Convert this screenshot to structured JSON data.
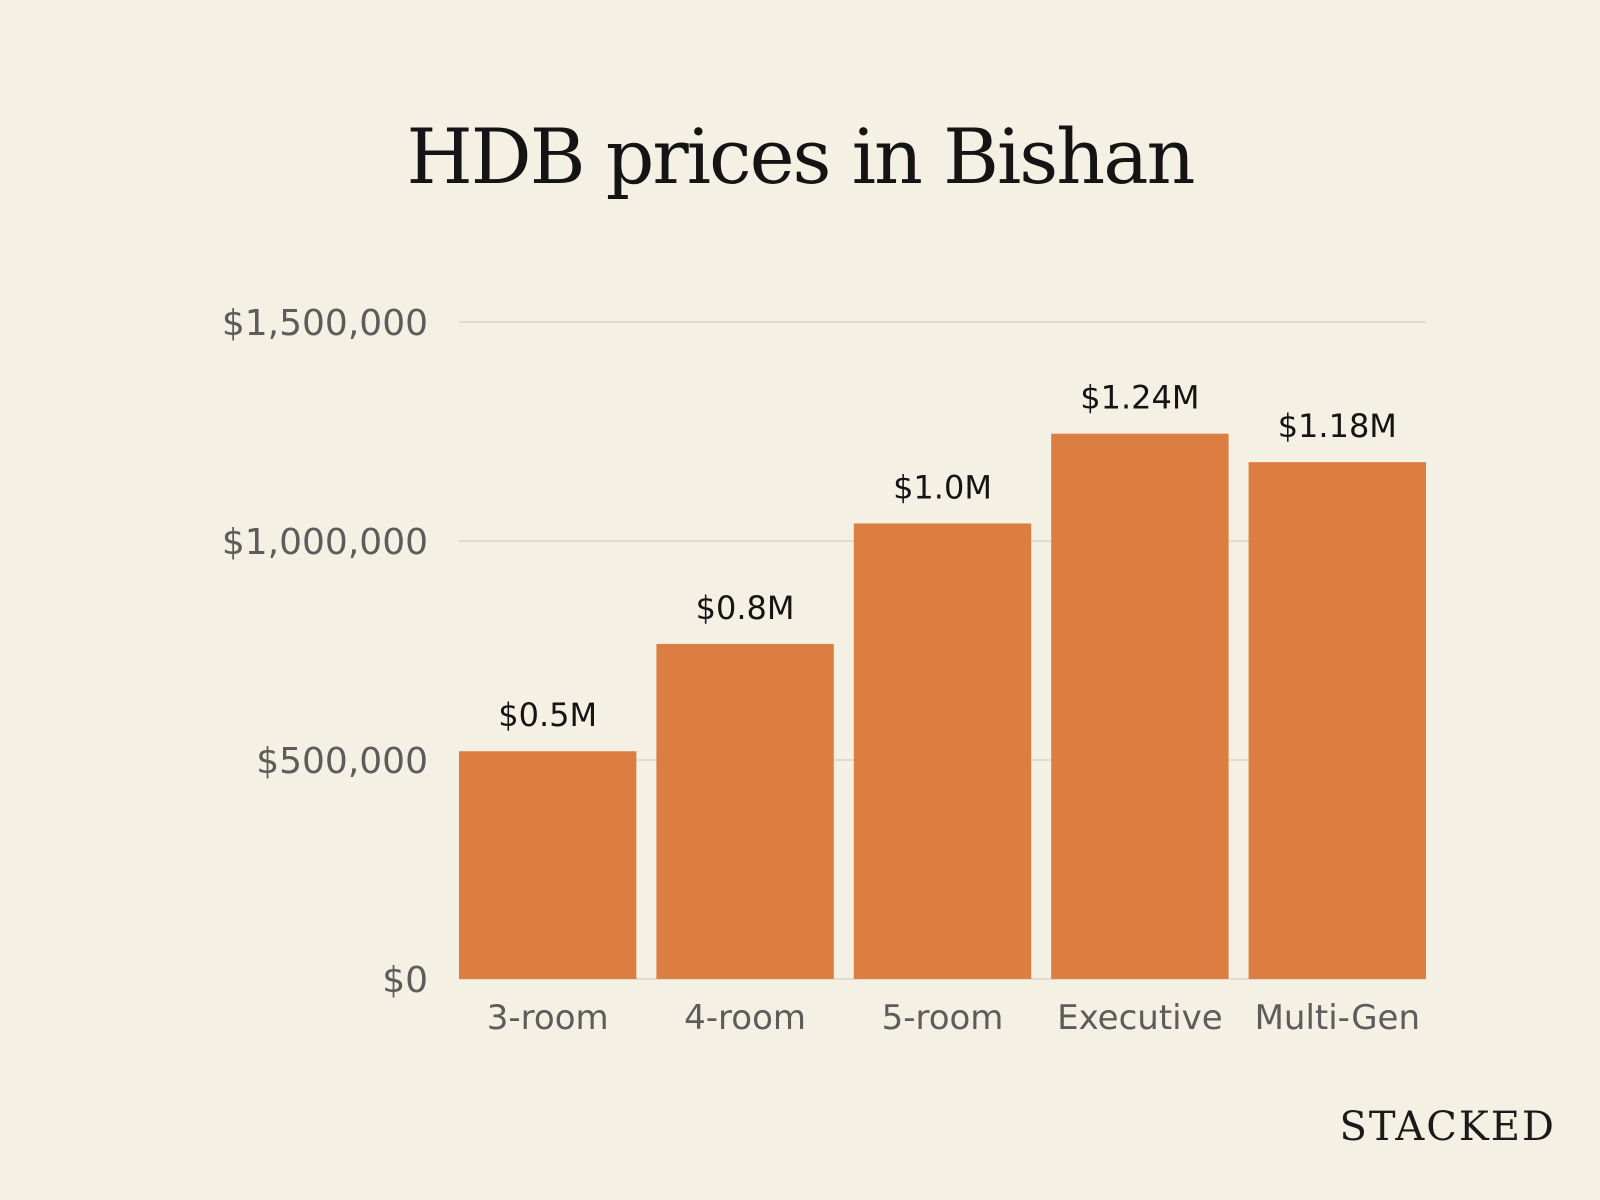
{
  "chart_data": {
    "type": "bar",
    "title": "HDB prices in Bishan",
    "categories": [
      "3-room",
      "4-room",
      "5-room",
      "Executive",
      "Multi-Gen"
    ],
    "values": [
      520000,
      765000,
      1040000,
      1245000,
      1180000
    ],
    "data_labels": [
      "$0.5M",
      "$0.8M",
      "$1.0M",
      "$1.24M",
      "$1.18M"
    ],
    "ylim": [
      0,
      1500000
    ],
    "y_ticks": [
      0,
      500000,
      1000000,
      1500000
    ],
    "y_tick_labels": [
      "$0",
      "$500,000",
      "$1,000,000",
      "$1,500,000"
    ],
    "xlabel": "",
    "ylabel": "",
    "grid": true,
    "legend": "none",
    "bar_color": "#dc7d41",
    "grid_color": "#d9d5cb"
  },
  "branding": {
    "logo_text": "STACKED"
  },
  "colors": {
    "background": "#f4f0e4",
    "title": "#141414",
    "tick_text": "#5c5c5c"
  }
}
